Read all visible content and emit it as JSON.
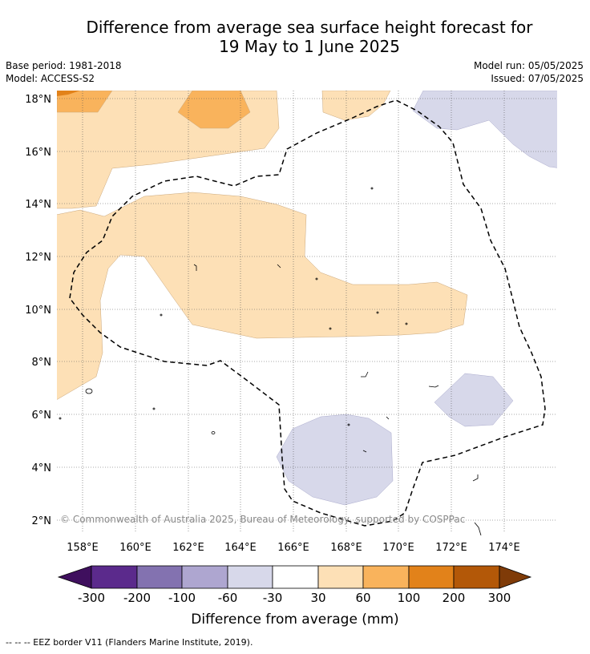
{
  "title_line1": "Difference from average sea surface height forecast for",
  "title_line2": "19 May to 1 June 2025",
  "meta": {
    "base_period": "Base period: 1981-2018",
    "model": "Model: ACCESS-S2",
    "model_run": "Model run: 05/05/2025",
    "issued": "Issued: 07/05/2025"
  },
  "copyright": "© Commonwealth of Australia 2025, Bureau of Meteorology, supported by COSPPac",
  "footer": "-- -- -- EEZ border V11 (Flanders Marine Institute, 2019).",
  "map": {
    "lon_labels": [
      "158°E",
      "160°E",
      "162°E",
      "164°E",
      "166°E",
      "168°E",
      "170°E",
      "172°E",
      "174°E"
    ],
    "lat_labels": [
      "2°N",
      "4°N",
      "6°N",
      "8°N",
      "10°N",
      "12°N",
      "14°N",
      "16°N",
      "18°N"
    ]
  },
  "colorbar": {
    "title": "Difference from average (mm)",
    "tick_labels": [
      "-300",
      "-200",
      "-100",
      "-60",
      "-30",
      "30",
      "60",
      "100",
      "200",
      "300"
    ],
    "colors": [
      "#3f0f5e",
      "#5b2a8c",
      "#8372b0",
      "#aea6d0",
      "#d7d8ea",
      "#ffffff",
      "#fde0b6",
      "#f9b35c",
      "#e2821a",
      "#b35808",
      "#7f3b08"
    ]
  },
  "colors": {
    "pos30": "#fde0b6",
    "pos60": "#f9b35c",
    "pos100": "#e2821a",
    "neg30": "#d7d8ea"
  }
}
